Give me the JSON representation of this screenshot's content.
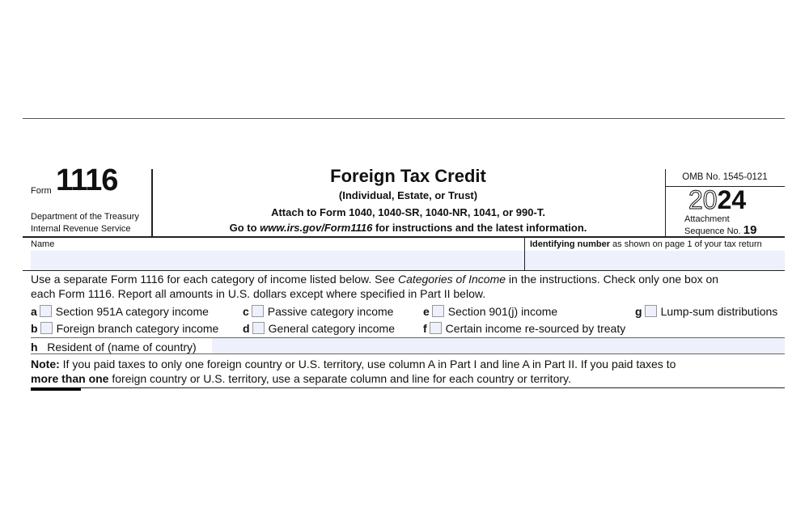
{
  "header": {
    "form_label": "Form",
    "form_number": "1116",
    "dept_line1": "Department of the Treasury",
    "dept_line2": "Internal Revenue Service",
    "title": "Foreign Tax Credit",
    "subtitle": "(Individual, Estate, or Trust)",
    "attach": "Attach to Form 1040, 1040-SR, 1040-NR, 1041, or 990-T.",
    "goto_prefix": "Go to ",
    "goto_url": "www.irs.gov/Form1116",
    "goto_suffix": " for instructions and the latest information.",
    "omb": "OMB No. 1545-0121",
    "year_outline": "20",
    "year_bold": "24",
    "attachment": "Attachment",
    "sequence_label": "Sequence No.",
    "sequence_no": "19"
  },
  "fields": {
    "name_label": "Name",
    "id_label_bold": "Identifying number",
    "id_label_rest": " as shown on page 1 of your tax return"
  },
  "instructions": {
    "line1_a": "Use a separate Form 1116 for each category of income listed below. See ",
    "line1_italic": "Categories of Income",
    "line1_b": " in the instructions. Check only one box on",
    "line2": "each Form 1116. Report all amounts in U.S. dollars except where specified in Part II below."
  },
  "categories": [
    {
      "letter": "a",
      "label": "Section 951A category income",
      "checked": false
    },
    {
      "letter": "b",
      "label": "Foreign branch category income",
      "checked": false
    },
    {
      "letter": "c",
      "label": "Passive category income",
      "checked": false
    },
    {
      "letter": "d",
      "label": "General category income",
      "checked": false
    },
    {
      "letter": "e",
      "label": "Section 901(j) income",
      "checked": false
    },
    {
      "letter": "f",
      "label": "Certain income re-sourced by treaty",
      "checked": false
    },
    {
      "letter": "g",
      "label": "Lump-sum distributions",
      "checked": false
    }
  ],
  "resident": {
    "letter": "h",
    "label": "Resident of (name of country)",
    "value": ""
  },
  "note": {
    "bold1": "Note:",
    "text1": " If you paid taxes to only one foreign country or U.S. territory, use column A in Part I and line A in Part II. If you paid taxes to",
    "bold2": "more than one",
    "text2": " foreign country or U.S. territory, use a separate column and line for each country or territory."
  }
}
